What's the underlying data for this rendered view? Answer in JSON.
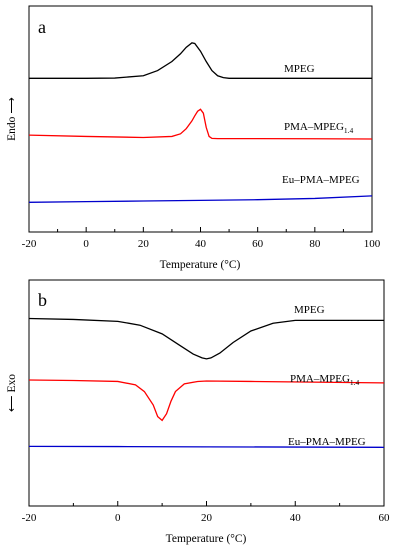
{
  "chart_data": [
    {
      "type": "line",
      "panel_label": "a",
      "xlabel": "Temperature (°C)",
      "ylabel": "Endo",
      "ylabel_arrow": "⟶",
      "xlim": [
        -20,
        100
      ],
      "xticks": [
        -20,
        0,
        20,
        40,
        60,
        80,
        100
      ],
      "grid": false,
      "series": [
        {
          "name": "MPEG",
          "color": "#000000",
          "x": [
            -20,
            0,
            10,
            20,
            25,
            30,
            33,
            35,
            37,
            38,
            40,
            42,
            44,
            46,
            48,
            50,
            60,
            80,
            100
          ],
          "y": [
            0.0,
            0.0,
            0.2,
            2.0,
            6.0,
            13.0,
            19.0,
            24.0,
            27.5,
            27.0,
            21.0,
            13.0,
            6.0,
            2.0,
            0.5,
            0.0,
            0.0,
            0.0,
            0.0
          ]
        },
        {
          "name_main": "PMA–MPEG",
          "name_sub": "1.4",
          "color": "#ff0000",
          "x": [
            -20,
            0,
            20,
            30,
            33,
            35,
            37,
            38,
            39,
            40,
            41,
            42,
            43,
            44,
            46,
            50,
            60,
            80,
            100
          ],
          "y": [
            0.0,
            -1.0,
            -1.8,
            -1.0,
            1.0,
            5.0,
            11.0,
            15.0,
            18.5,
            20.0,
            17.0,
            6.0,
            -1.0,
            -2.5,
            -2.7,
            -2.7,
            -2.7,
            -2.8,
            -3.0
          ]
        },
        {
          "name": "Eu–PMA–MPEG",
          "color": "#0000cc",
          "x": [
            -20,
            0,
            20,
            40,
            60,
            80,
            100
          ],
          "y": [
            0.0,
            0.5,
            1.0,
            1.5,
            2.0,
            3.0,
            5.0
          ]
        }
      ]
    },
    {
      "type": "line",
      "panel_label": "b",
      "xlabel": "Temperature (°C)",
      "ylabel": "Exo",
      "ylabel_arrow": "⟵",
      "xlim": [
        -20,
        60
      ],
      "xticks": [
        -20,
        0,
        20,
        40,
        60
      ],
      "grid": false,
      "series": [
        {
          "name": "MPEG",
          "color": "#000000",
          "x": [
            -20,
            -10,
            0,
            5,
            10,
            14,
            17,
            19,
            20,
            21,
            23,
            26,
            30,
            35,
            40,
            50,
            60
          ],
          "y": [
            0.0,
            -1.0,
            -3.0,
            -7.0,
            -16.0,
            -28.0,
            -37.0,
            -41.0,
            -42.0,
            -41.0,
            -36.0,
            -25.0,
            -13.0,
            -5.0,
            -2.0,
            -2.0,
            -2.0
          ]
        },
        {
          "name_main": "PMA–MPEG",
          "name_sub": "1.4",
          "color": "#ff0000",
          "x": [
            -20,
            -10,
            0,
            4,
            6,
            8,
            9,
            10,
            11,
            12,
            13,
            15,
            18,
            20,
            30,
            60
          ],
          "y": [
            0.0,
            -0.5,
            -1.5,
            -5.0,
            -12.0,
            -26.0,
            -38.0,
            -42.0,
            -35.0,
            -22.0,
            -12.0,
            -4.0,
            -1.5,
            -1.0,
            -1.5,
            -3.0
          ]
        },
        {
          "name": "Eu–PMA–MPEG",
          "color": "#0000cc",
          "x": [
            -20,
            0,
            20,
            40,
            60
          ],
          "y": [
            0.0,
            -0.2,
            -0.5,
            -0.7,
            -1.0
          ]
        }
      ]
    }
  ]
}
